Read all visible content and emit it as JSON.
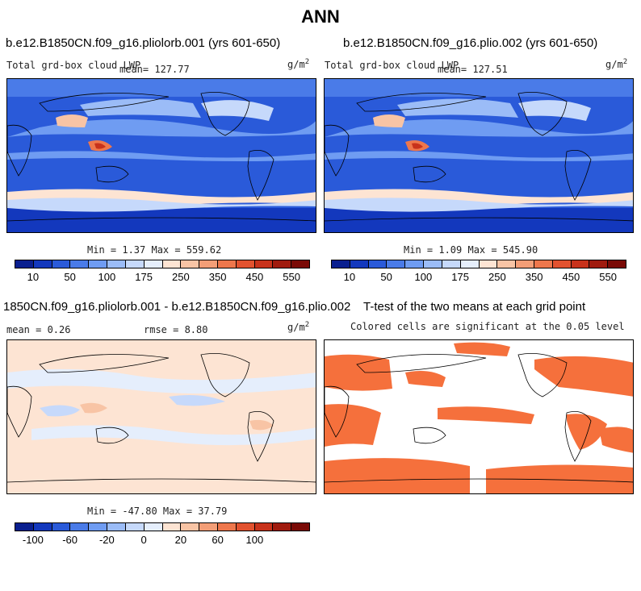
{
  "main_title": "ANN",
  "chart_data": [
    {
      "type": "heatmap",
      "title": "b.e12.B1850CN.f09_g16.pliolorb.001 (yrs 601-650)",
      "variable_label": "Total grd-box cloud LWP",
      "mean_label": "mean= 127.77",
      "units": "g/m",
      "units_exp": "2",
      "minmax_label": "Min =   1.37 Max = 559.62",
      "colorbar_levels": [
        "10",
        "50",
        "100",
        "175",
        "250",
        "350",
        "450",
        "550"
      ],
      "colorbar_colors": [
        "#0a1f8f",
        "#1338bd",
        "#2a5ad9",
        "#4a7be8",
        "#6f9cf2",
        "#9bbcf7",
        "#c6d9fb",
        "#e5eefc",
        "#fde4d3",
        "#f8c4a5",
        "#f39e77",
        "#ee774c",
        "#e2522f",
        "#c8321b",
        "#a01b0e",
        "#7a0a06"
      ]
    },
    {
      "type": "heatmap",
      "title": "b.e12.B1850CN.f09_g16.plio.002 (yrs 601-650)",
      "variable_label": "Total grd-box cloud LWP",
      "mean_label": "mean= 127.51",
      "units": "g/m",
      "units_exp": "2",
      "minmax_label": "Min =   1.09 Max = 545.90",
      "colorbar_levels": [
        "10",
        "50",
        "100",
        "175",
        "250",
        "350",
        "450",
        "550"
      ]
    },
    {
      "type": "heatmap",
      "title": "1850CN.f09_g16.pliolorb.001 - b.e12.B1850CN.f09_g16.plio.002",
      "mean_label": "mean =   0.26",
      "rmse_label": "rmse =   8.80",
      "units": "g/m",
      "units_exp": "2",
      "minmax_label": "Min = -47.80 Max =  37.79",
      "colorbar_levels": [
        "-100",
        "-60",
        "-20",
        "0",
        "20",
        "60",
        "100"
      ],
      "colorbar_colors": [
        "#0a1f8f",
        "#1338bd",
        "#2a5ad9",
        "#4a7be8",
        "#6f9cf2",
        "#9bbcf7",
        "#c6d9fb",
        "#e5eefc",
        "#fde4d3",
        "#f8c4a5",
        "#f39e77",
        "#ee774c",
        "#e2522f",
        "#c8321b",
        "#a01b0e",
        "#7a0a06"
      ]
    },
    {
      "type": "heatmap",
      "title": "T-test of the two means at each grid point",
      "subtitle": "Colored cells are significant at the 0.05 level",
      "significant_color": "#f5703c"
    }
  ]
}
